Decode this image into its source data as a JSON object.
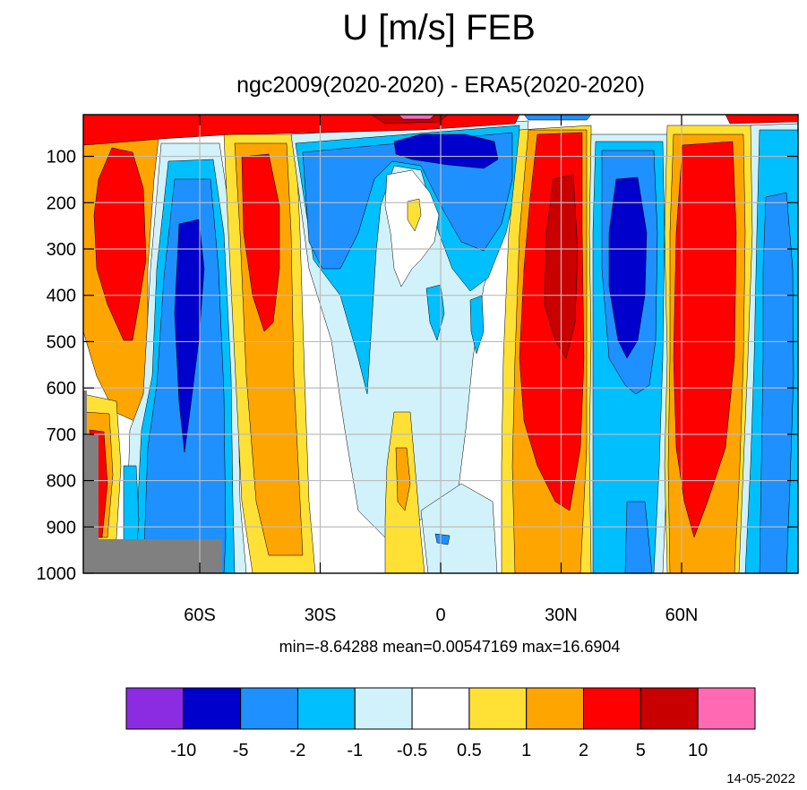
{
  "chart_data": {
    "type": "heatmap",
    "title": "U [m/s] FEB",
    "subtitle": "ngc2009(2020-2020) - ERA5(2020-2020)",
    "xlabel": "",
    "ylabel": "",
    "x_ticks": [
      {
        "value": -60,
        "label": "60S"
      },
      {
        "value": -30,
        "label": "30S"
      },
      {
        "value": 0,
        "label": "0"
      },
      {
        "value": 30,
        "label": "30N"
      },
      {
        "value": 60,
        "label": "60N"
      }
    ],
    "y_ticks": [
      {
        "value": 100,
        "label": "100"
      },
      {
        "value": 200,
        "label": "200"
      },
      {
        "value": 300,
        "label": "300"
      },
      {
        "value": 400,
        "label": "400"
      },
      {
        "value": 500,
        "label": "500"
      },
      {
        "value": 600,
        "label": "600"
      },
      {
        "value": 700,
        "label": "700"
      },
      {
        "value": 800,
        "label": "800"
      },
      {
        "value": 900,
        "label": "900"
      },
      {
        "value": 1000,
        "label": "1000"
      }
    ],
    "xlim": [
      -89,
      89
    ],
    "ylim": [
      1000,
      10
    ],
    "y_reversed": true,
    "grid": true,
    "stats": "min=-8.64288   mean=0.00547169   max=16.6904",
    "colorbar": {
      "colors": [
        "#8b2be2",
        "#0000cd",
        "#1e90ff",
        "#00bfff",
        "#d1f2fa",
        "#ffffff",
        "#ffe135",
        "#ffa500",
        "#ff0000",
        "#c80000",
        "#ff69b4"
      ],
      "levels": [
        "-10",
        "-5",
        "-2",
        "-1",
        "-0.5",
        "0.5",
        "1",
        "2",
        "5",
        "10"
      ],
      "placement": "bottom"
    },
    "field_features": [
      {
        "lat": -80,
        "p": 280,
        "value": 6,
        "sign": "+"
      },
      {
        "lat": -61,
        "p": 380,
        "value": -6,
        "sign": "-"
      },
      {
        "lat": -43,
        "p": 300,
        "value": 4,
        "sign": "+"
      },
      {
        "lat": -22,
        "p": 200,
        "value": -3,
        "sign": "-"
      },
      {
        "lat": -2,
        "p": 60,
        "value": -6,
        "sign": "-"
      },
      {
        "lat": 30,
        "p": 320,
        "value": 8,
        "sign": "+"
      },
      {
        "lat": 44,
        "p": 300,
        "value": -7,
        "sign": "-"
      },
      {
        "lat": 60,
        "p": 450,
        "value": 7,
        "sign": "+"
      },
      {
        "lat": 82,
        "p": 400,
        "value": -3,
        "sign": "-"
      }
    ],
    "date": "14-05-2022"
  }
}
